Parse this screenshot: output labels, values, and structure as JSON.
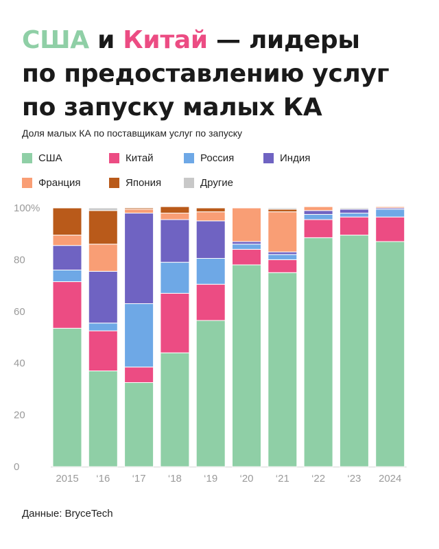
{
  "title": {
    "part1": "США",
    "part2": " и ",
    "part3": "Китай",
    "part4": " — лидеры",
    "line2": "по предоставлению услуг",
    "line3": "по запуску малых КА"
  },
  "colors": {
    "title_usa": "#8fcfa6",
    "title_china": "#ec4c83",
    "axis_text": "#9a9a9a"
  },
  "source_label": "Данные: BryceTech",
  "chart_data": {
    "type": "bar",
    "stacked": true,
    "title": "Доля малых КА по поставщикам услуг по запуску",
    "xlabel": "",
    "ylabel": "",
    "ylim": [
      0,
      100
    ],
    "y_ticks": [
      0,
      20,
      40,
      60,
      80,
      100
    ],
    "y_tick_labels": [
      "0",
      "20",
      "40",
      "60",
      "80",
      "100%"
    ],
    "categories": [
      "2015",
      "‘16",
      "‘17",
      "‘18",
      "‘19",
      "‘20",
      "‘21",
      "‘22",
      "‘23",
      "2024"
    ],
    "legend_position": "top",
    "series": [
      {
        "name": "США",
        "color": "#8fcfa6",
        "values": [
          53.5,
          37,
          32.5,
          44,
          56.5,
          78,
          75,
          88.5,
          89.5,
          87
        ]
      },
      {
        "name": "Китай",
        "color": "#ec4c83",
        "values": [
          18,
          15.5,
          6,
          23,
          14,
          6,
          5,
          7,
          7,
          9.5
        ]
      },
      {
        "name": "Россия",
        "color": "#6ea8e6",
        "values": [
          4.5,
          3,
          24.5,
          12,
          10,
          2,
          2,
          2,
          1.5,
          3
        ]
      },
      {
        "name": "Индия",
        "color": "#6f63c2",
        "values": [
          9.5,
          20,
          35,
          16.5,
          14.5,
          1,
          1,
          1.5,
          1.5,
          0.5
        ]
      },
      {
        "name": "Франция",
        "color": "#f99e75",
        "values": [
          4,
          10.5,
          1.5,
          2.5,
          3.5,
          13,
          15.5,
          1.5,
          0,
          0.5
        ]
      },
      {
        "name": "Япония",
        "color": "#b95a1a",
        "values": [
          10.5,
          13,
          0.5,
          2.5,
          1.5,
          0,
          1,
          0,
          0,
          0
        ]
      },
      {
        "name": "Другие",
        "color": "#c8c8c8",
        "values": [
          0,
          1,
          0,
          0,
          0,
          0,
          0.5,
          0,
          0.5,
          0
        ]
      }
    ]
  }
}
